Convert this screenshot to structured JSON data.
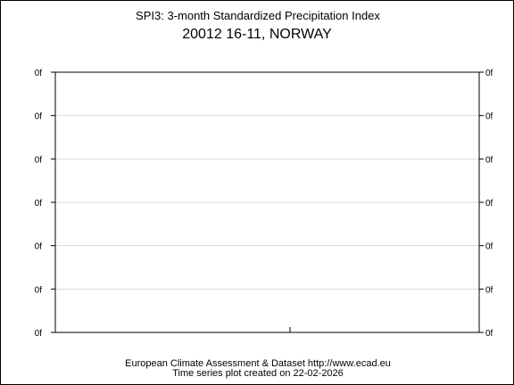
{
  "chart_data": {
    "type": "line",
    "title": "SPI3: 3-month Standardized Precipitation Index",
    "subtitle": "20012 16-11, NORWAY",
    "xlabel": "",
    "ylabel": "",
    "y_tick_labels": [
      "0f",
      "0f",
      "0f",
      "0f",
      "0f",
      "0f",
      "0f"
    ],
    "series": [],
    "grid": true,
    "footer": {
      "line1": "European Climate Assessment & Dataset  http://www.ecad.eu",
      "line2": "Time series plot created on 22-02-2026"
    }
  }
}
